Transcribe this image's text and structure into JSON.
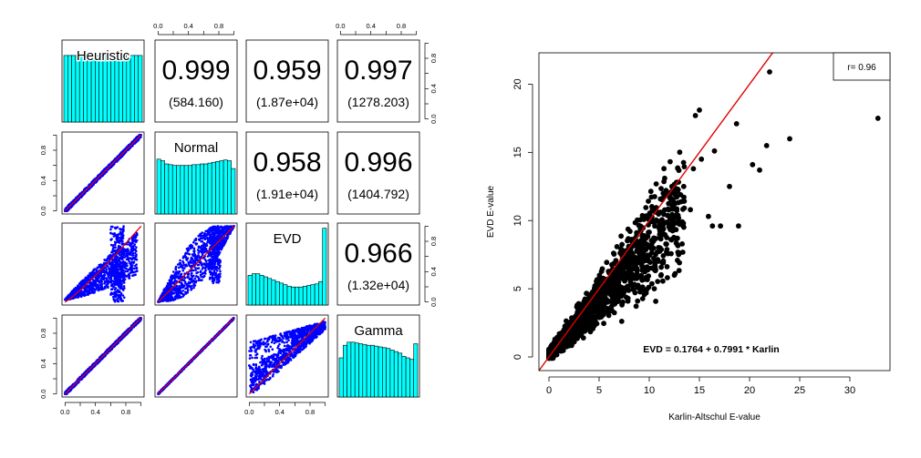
{
  "chart_data": [
    {
      "type": "scatter-matrix",
      "variables": [
        "Heuristic",
        "Normal",
        "EVD",
        "Gamma"
      ],
      "axis_range": [
        0,
        1
      ],
      "ticks": [
        0.0,
        0.4,
        0.8
      ],
      "tick_labels": [
        "0.0",
        "0.4",
        "0.8"
      ],
      "upper_panels": [
        {
          "pair": [
            "Heuristic",
            "Normal"
          ],
          "value": "0.999",
          "stat": "(584.160)"
        },
        {
          "pair": [
            "Heuristic",
            "EVD"
          ],
          "value": "0.959",
          "stat": "(1.87e+04)"
        },
        {
          "pair": [
            "Heuristic",
            "Gamma"
          ],
          "value": "0.997",
          "stat": "(1278.203)"
        },
        {
          "pair": [
            "Normal",
            "EVD"
          ],
          "value": "0.958",
          "stat": "(1.91e+04)"
        },
        {
          "pair": [
            "Normal",
            "Gamma"
          ],
          "value": "0.996",
          "stat": "(1404.792)"
        },
        {
          "pair": [
            "EVD",
            "Gamma"
          ],
          "value": "0.966",
          "stat": "(1.32e+04)"
        }
      ],
      "histograms": {
        "Heuristic": [
          0.85,
          0.85,
          0.85,
          0.85,
          0.85,
          0.85,
          0.85,
          0.85,
          0.85,
          0.85,
          0.85,
          0.85,
          0.85,
          0.85,
          0.85,
          0.85,
          0.85,
          0.85,
          0.85,
          0.85
        ],
        "Normal": [
          0.7,
          0.68,
          0.64,
          0.63,
          0.62,
          0.62,
          0.62,
          0.62,
          0.62,
          0.63,
          0.63,
          0.64,
          0.64,
          0.65,
          0.66,
          0.67,
          0.68,
          0.69,
          0.68,
          0.58
        ],
        "EVD": [
          0.38,
          0.4,
          0.4,
          0.38,
          0.36,
          0.34,
          0.32,
          0.3,
          0.28,
          0.26,
          0.24,
          0.23,
          0.23,
          0.23,
          0.24,
          0.25,
          0.26,
          0.27,
          0.3,
          0.98
        ],
        "Gamma": [
          0.5,
          0.66,
          0.7,
          0.7,
          0.69,
          0.68,
          0.67,
          0.66,
          0.66,
          0.65,
          0.64,
          0.63,
          0.62,
          0.6,
          0.58,
          0.56,
          0.52,
          0.5,
          0.48,
          0.68
        ]
      }
    },
    {
      "type": "scatter",
      "xlabel": "Karlin-Altschul E-value",
      "ylabel": "EVD E-value",
      "xlim": [
        -1,
        34
      ],
      "ylim": [
        -1,
        22.3
      ],
      "xticks": [
        0,
        5,
        10,
        15,
        20,
        25,
        30
      ],
      "yticks": [
        0,
        5,
        10,
        15,
        20
      ],
      "fit": {
        "intercept": 0.1764,
        "slope": 0.7991
      },
      "equation": "EVD = 0.1764 + 0.7991 * Karlin",
      "legend": "r= 0.96",
      "outliers": [
        [
          22.0,
          20.9
        ],
        [
          32.8,
          17.5
        ],
        [
          15.0,
          18.1
        ],
        [
          14.6,
          17.7
        ],
        [
          18.7,
          17.1
        ],
        [
          24.0,
          16.0
        ],
        [
          21.7,
          15.5
        ],
        [
          16.5,
          15.1
        ],
        [
          15.2,
          14.5
        ],
        [
          14.4,
          13.8
        ],
        [
          20.3,
          14.1
        ],
        [
          21.0,
          13.7
        ],
        [
          18.0,
          12.5
        ],
        [
          18.9,
          9.6
        ],
        [
          17.1,
          9.6
        ],
        [
          16.3,
          9.6
        ],
        [
          15.9,
          10.3
        ],
        [
          13.4,
          9.8
        ],
        [
          14.1,
          10.8
        ]
      ]
    }
  ]
}
